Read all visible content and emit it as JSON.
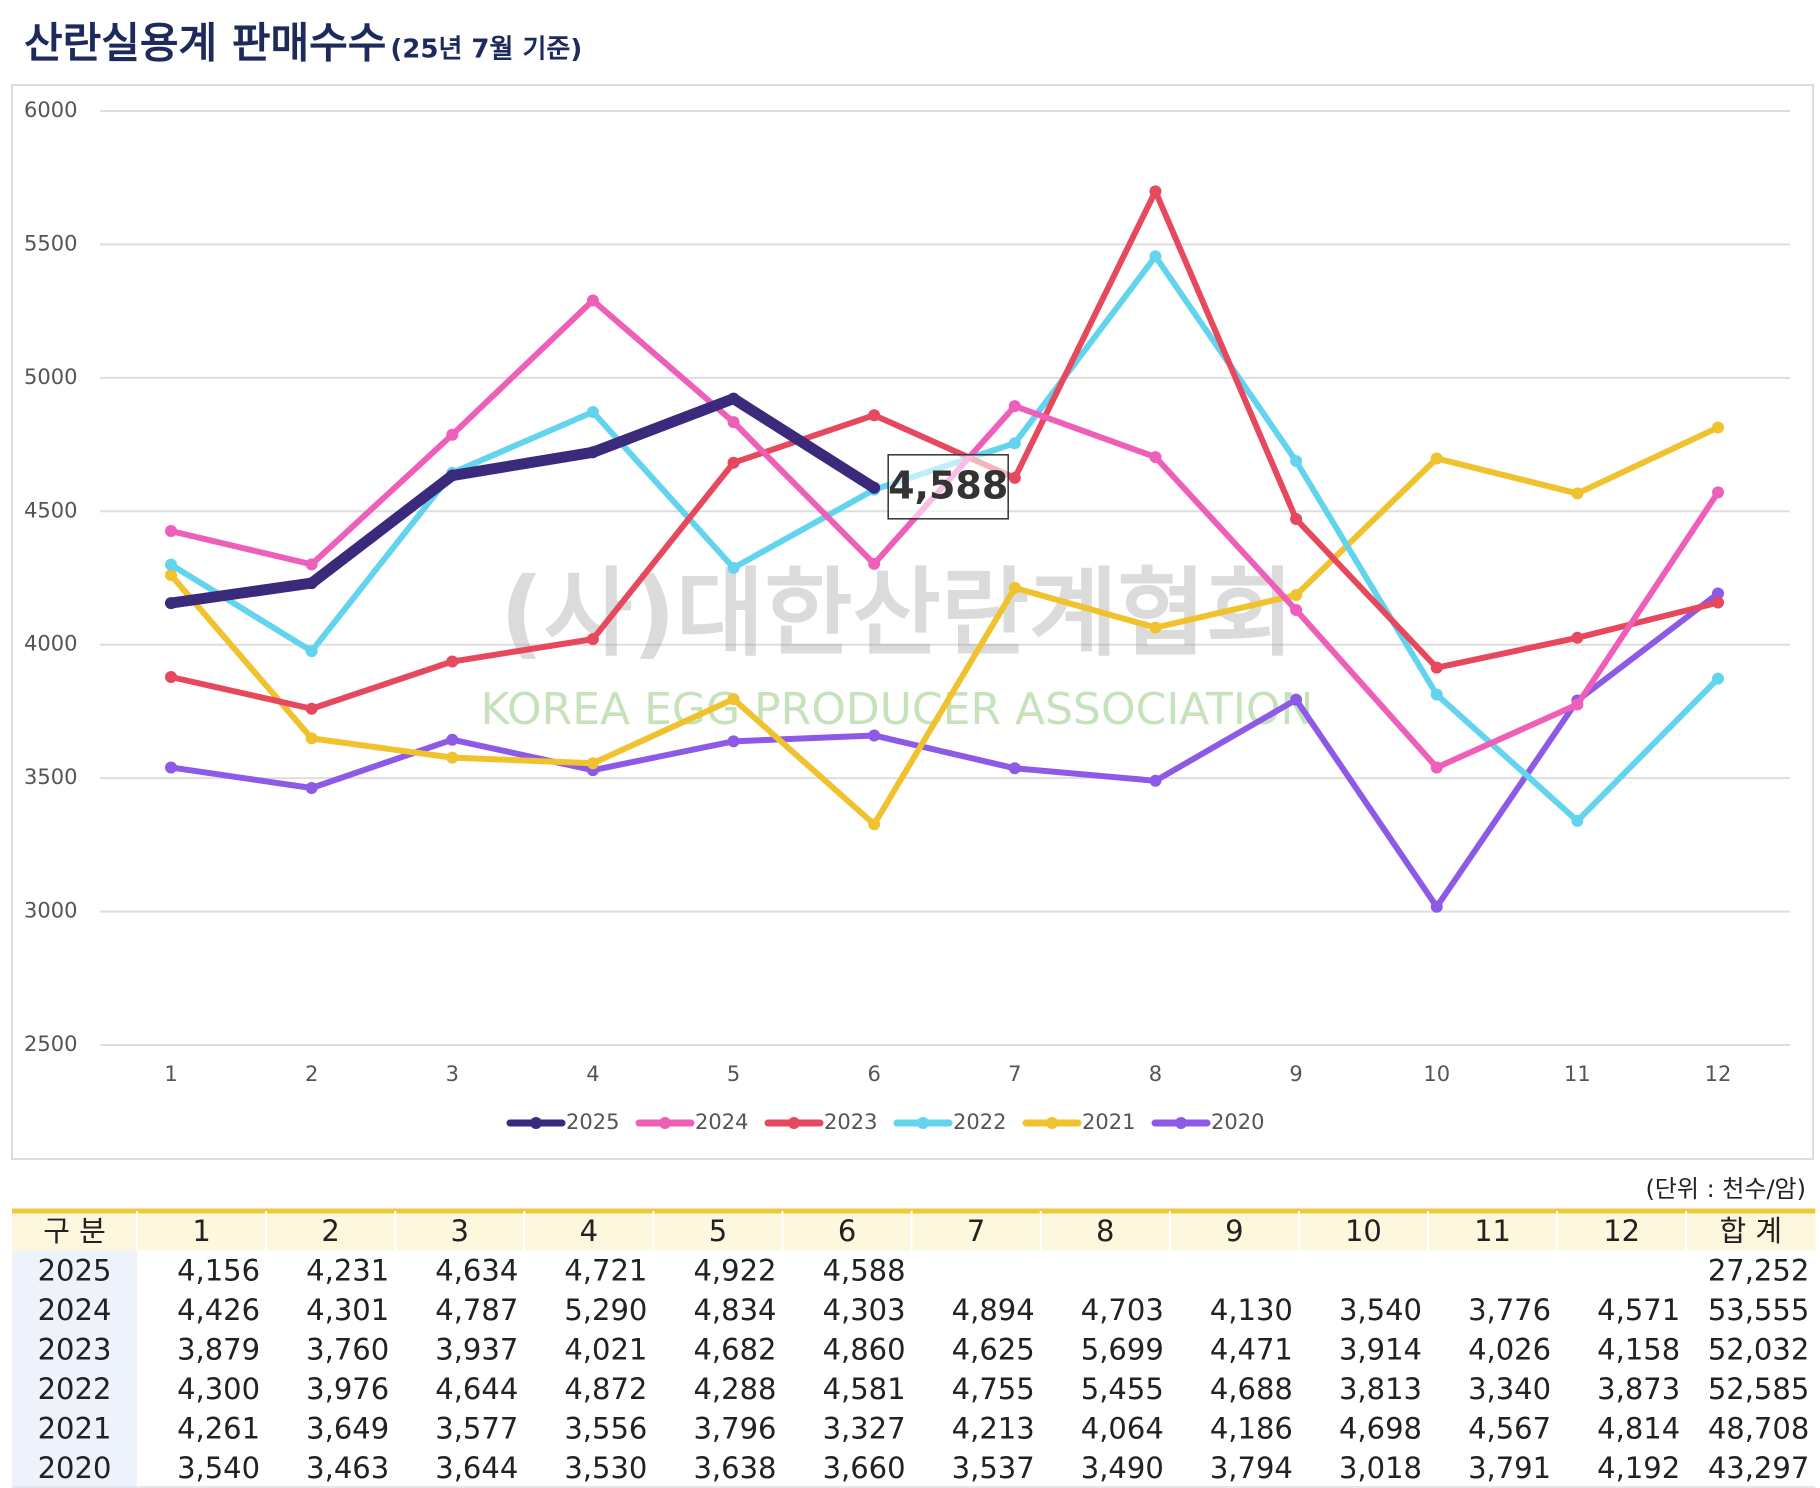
{
  "chart_data": {
    "type": "line",
    "title": "산란실용계 판매수수",
    "subtitle": "(25년 7월 기준)",
    "categories": [
      "1",
      "2",
      "3",
      "4",
      "5",
      "6",
      "7",
      "8",
      "9",
      "10",
      "11",
      "12"
    ],
    "series": [
      {
        "name": "2025",
        "color": "#3b2a7c",
        "values": [
          4156,
          4231,
          4634,
          4721,
          4922,
          4588,
          null,
          null,
          null,
          null,
          null,
          null
        ]
      },
      {
        "name": "2024",
        "color": "#ee5fb9",
        "values": [
          4426,
          4301,
          4787,
          5290,
          4834,
          4303,
          4894,
          4703,
          4130,
          3540,
          3776,
          4571
        ]
      },
      {
        "name": "2023",
        "color": "#e6485d",
        "values": [
          3879,
          3760,
          3937,
          4021,
          4682,
          4860,
          4625,
          5699,
          4471,
          3914,
          4026,
          4158
        ]
      },
      {
        "name": "2022",
        "color": "#62d4ee",
        "values": [
          4300,
          3976,
          4644,
          4872,
          4288,
          4581,
          4755,
          5455,
          4688,
          3813,
          3340,
          3873
        ]
      },
      {
        "name": "2021",
        "color": "#f0c22e",
        "values": [
          4261,
          3649,
          3577,
          3556,
          3796,
          3327,
          4213,
          4064,
          4186,
          4698,
          4567,
          4814
        ]
      },
      {
        "name": "2020",
        "color": "#8c5ae6",
        "values": [
          3540,
          3463,
          3644,
          3530,
          3638,
          3660,
          3537,
          3490,
          3794,
          3018,
          3791,
          4192
        ]
      }
    ],
    "ylim": [
      2500,
      6000
    ],
    "yticks": [
      2500,
      3000,
      3500,
      4000,
      4500,
      5000,
      5500,
      6000
    ],
    "grid": true,
    "legend": "bottom",
    "annotations": [
      {
        "text": "4,588",
        "series": 0,
        "index": 5
      }
    ],
    "watermark": [
      "(사)대한산란계협회",
      "KOREA EGG PRODUCER ASSOCIATION"
    ]
  },
  "table": {
    "unit": "(단위 : 천수/암)",
    "header": [
      "구 분",
      "1",
      "2",
      "3",
      "4",
      "5",
      "6",
      "7",
      "8",
      "9",
      "10",
      "11",
      "12",
      "합 계"
    ],
    "rows": [
      {
        "label": "2025",
        "cells": [
          "4,156",
          "4,231",
          "4,634",
          "4,721",
          "4,922",
          "4,588"
        ],
        "total": "27,252"
      },
      {
        "label": "2024",
        "cells": [
          "4,426",
          "4,301",
          "4,787",
          "5,290",
          "4,834",
          "4,303",
          "4,894",
          "4,703",
          "4,130",
          "3,540",
          "3,776",
          "4,571"
        ],
        "total": "53,555"
      },
      {
        "label": "2023",
        "cells": [
          "3,879",
          "3,760",
          "3,937",
          "4,021",
          "4,682",
          "4,860",
          "4,625",
          "5,699",
          "4,471",
          "3,914",
          "4,026",
          "4,158"
        ],
        "total": "52,032"
      },
      {
        "label": "2022",
        "cells": [
          "4,300",
          "3,976",
          "4,644",
          "4,872",
          "4,288",
          "4,581",
          "4,755",
          "5,455",
          "4,688",
          "3,813",
          "3,340",
          "3,873"
        ],
        "total": "52,585"
      },
      {
        "label": "2021",
        "cells": [
          "4,261",
          "3,649",
          "3,577",
          "3,556",
          "3,796",
          "3,327",
          "4,213",
          "4,064",
          "4,186",
          "4,698",
          "4,567",
          "4,814"
        ],
        "total": "48,708"
      },
      {
        "label": "2020",
        "cells": [
          "3,540",
          "3,463",
          "3,644",
          "3,530",
          "3,638",
          "3,660",
          "3,537",
          "3,490",
          "3,794",
          "3,018",
          "3,791",
          "4,192"
        ],
        "total": "43,297"
      }
    ]
  }
}
